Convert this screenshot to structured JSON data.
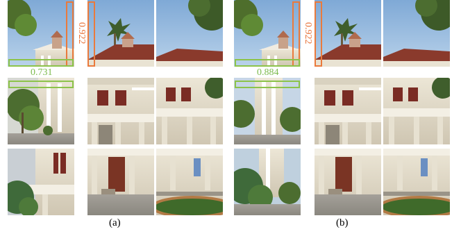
{
  "figure": {
    "panels": [
      {
        "id": "a",
        "caption": "(a)",
        "vertical_score": "0.922",
        "horizontal_score": "0.731"
      },
      {
        "id": "b",
        "caption": "(b)",
        "vertical_score": "0.922",
        "horizontal_score": "0.884"
      }
    ],
    "colors": {
      "vertical_highlight": "#ea7a3c",
      "horizontal_highlight": "#8cc34a"
    }
  }
}
